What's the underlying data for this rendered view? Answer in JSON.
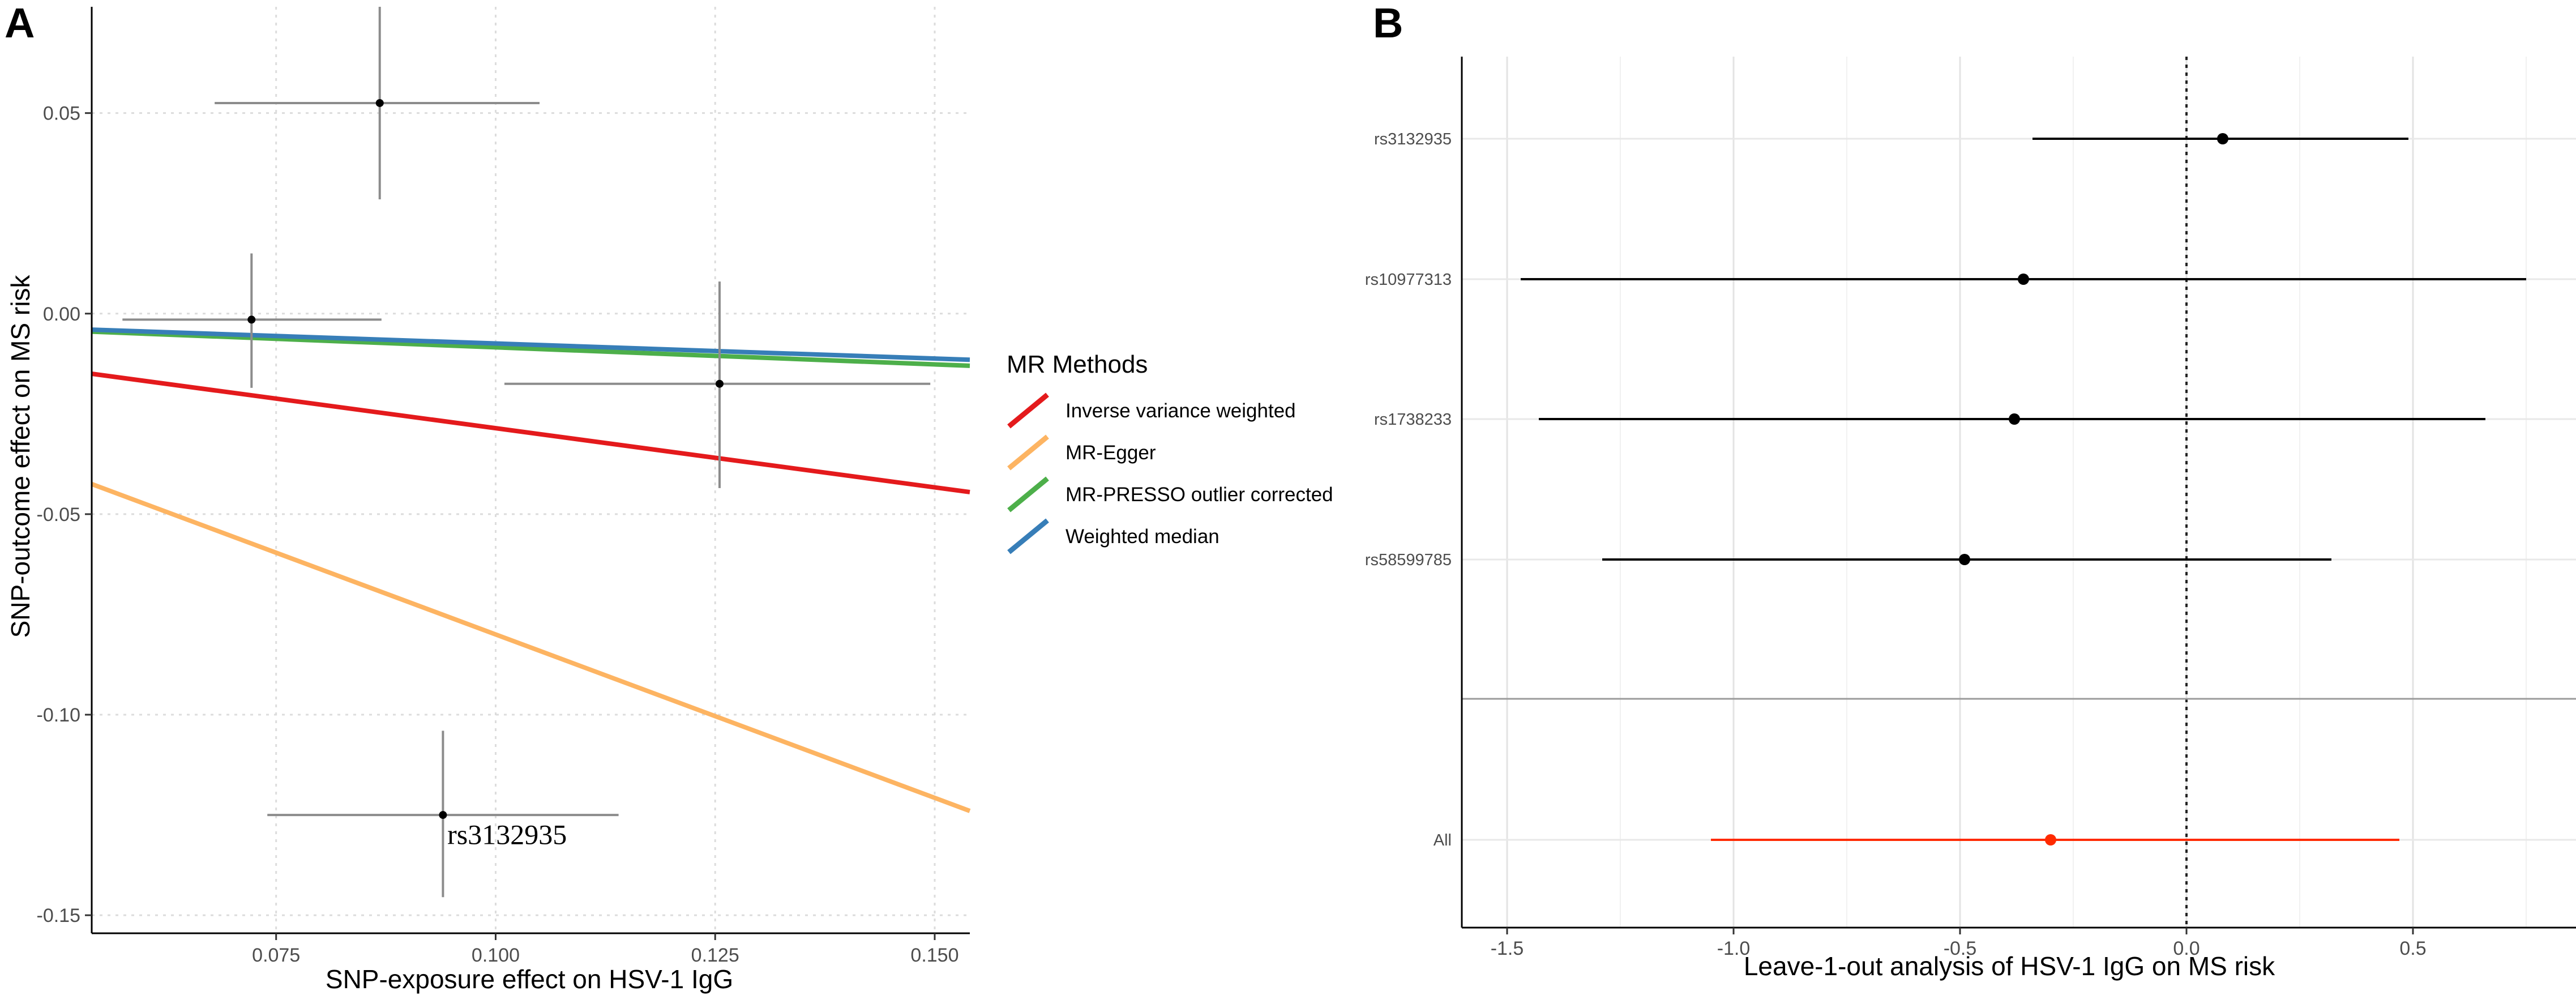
{
  "chart_data": [
    {
      "panel": "A",
      "type": "scatter",
      "xlabel": "SNP-exposure effect on HSV-1 IgG",
      "ylabel": "SNP-outcome effect on MS risk",
      "xlim": [
        0.054,
        0.154
      ],
      "ylim": [
        -0.1545,
        0.0765
      ],
      "x_ticks": [
        0.075,
        0.1,
        0.125,
        0.15
      ],
      "x_tick_labels": [
        "0.075",
        "0.100",
        "0.125",
        "0.150"
      ],
      "y_ticks": [
        0.05,
        0.0,
        -0.05,
        -0.1,
        -0.15
      ],
      "y_tick_labels": [
        "0.05",
        "0.00",
        "-0.05",
        "-0.10",
        "-0.15"
      ],
      "grid": true,
      "points": [
        {
          "x": 0.0868,
          "y": 0.0525,
          "x_lo": 0.068,
          "x_hi": 0.105,
          "y_lo": 0.0285,
          "y_hi": 0.0765
        },
        {
          "x": 0.0722,
          "y": -0.0015,
          "x_lo": 0.0575,
          "x_hi": 0.087,
          "y_lo": -0.0185,
          "y_hi": 0.015
        },
        {
          "x": 0.1255,
          "y": -0.0175,
          "x_lo": 0.101,
          "x_hi": 0.1495,
          "y_lo": -0.0435,
          "y_hi": 0.008
        },
        {
          "x": 0.094,
          "y": -0.125,
          "x_lo": 0.074,
          "x_hi": 0.114,
          "y_lo": -0.1455,
          "y_hi": -0.104
        }
      ],
      "annotations": [
        {
          "text": "rs3132935",
          "x": 0.0945,
          "y": -0.13
        }
      ],
      "series": [
        {
          "name": "Inverse variance weighted",
          "color": "#e41a1c",
          "x": [
            0.054,
            0.154
          ],
          "y": [
            -0.015,
            -0.0445
          ]
        },
        {
          "name": "MR-Egger",
          "color": "#fdb462",
          "x": [
            0.054,
            0.154
          ],
          "y": [
            -0.0425,
            -0.124
          ]
        },
        {
          "name": "MR-PRESSO outlier corrected",
          "color": "#4daf4a",
          "x": [
            0.054,
            0.154
          ],
          "y": [
            -0.0045,
            -0.013
          ]
        },
        {
          "name": "Weighted median",
          "color": "#377eb8",
          "x": [
            0.054,
            0.154
          ],
          "y": [
            -0.004,
            -0.0115
          ]
        }
      ],
      "legend_title": "MR Methods",
      "legend_position": "right"
    },
    {
      "panel": "B",
      "type": "forest",
      "xlabel": "Leave-1-out analysis of HSV-1 IgG on MS risk",
      "xlim": [
        -1.6,
        0.86
      ],
      "x_ticks": [
        -1.5,
        -1.0,
        -0.5,
        0.0,
        0.5
      ],
      "x_tick_labels": [
        "-1.5",
        "-1.0",
        "-0.5",
        "0.0",
        "0.5"
      ],
      "reference_line": 0.0,
      "rows": [
        {
          "label": "rs3132935",
          "estimate": 0.08,
          "lower": -0.34,
          "upper": 0.49,
          "color": "#000000"
        },
        {
          "label": "rs10977313",
          "estimate": -0.36,
          "lower": -1.47,
          "upper": 0.75,
          "color": "#000000"
        },
        {
          "label": "rs1738233",
          "estimate": -0.38,
          "lower": -1.43,
          "upper": 0.66,
          "color": "#000000"
        },
        {
          "label": "rs58599785",
          "estimate": -0.49,
          "lower": -1.29,
          "upper": 0.32,
          "color": "#000000"
        },
        {
          "label": "All",
          "estimate": -0.3,
          "lower": -1.05,
          "upper": 0.47,
          "color": "#ff2a00"
        }
      ],
      "separator": true
    }
  ]
}
